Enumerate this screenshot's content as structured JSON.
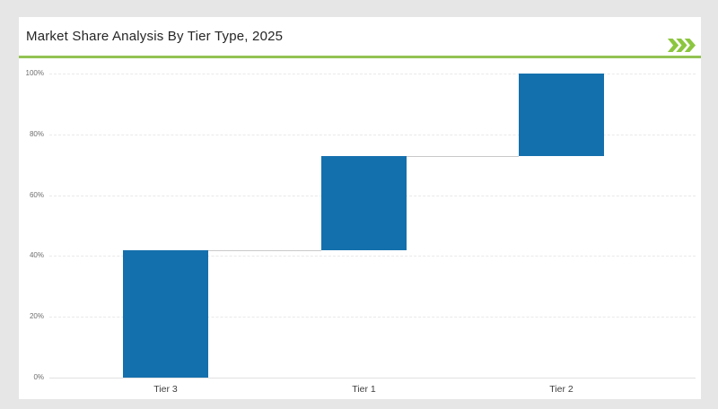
{
  "window": {
    "background_color": "#E6E6E6",
    "card_background_color": "#FFFFFF"
  },
  "header": {
    "title": "Market Share Analysis By Tier Type, 2025",
    "accent_green": "#92C353",
    "chevrons_icon": "triple-chevron-right-icon",
    "chevrons_color": "#8CC63F"
  },
  "chart_data": {
    "type": "bar",
    "subtype": "waterfall",
    "title": "Market Share Analysis By Tier Type, 2025",
    "categories": [
      "Tier 3",
      "Tier 1",
      "Tier 2"
    ],
    "values": [
      42,
      31,
      27
    ],
    "segments": [
      {
        "label": "Tier 3",
        "start": 0,
        "end": 42
      },
      {
        "label": "Tier 1",
        "start": 42,
        "end": 73
      },
      {
        "label": "Tier 2",
        "start": 73,
        "end": 100
      }
    ],
    "xlabel": "",
    "ylabel": "",
    "ylim": [
      0,
      100
    ],
    "ytick_values": [
      0,
      20,
      40,
      60,
      80,
      100
    ],
    "ytick_labels": [
      "0%",
      "20%",
      "40%",
      "60%",
      "80%",
      "100%"
    ],
    "grid": "horizontal-dashed",
    "legend": "none",
    "bar_color": "#1470AD",
    "connector_color": "#C9C9C9",
    "gridline_color": "#E9E9E9",
    "ytick_color": "#6E6E6E",
    "xtick_color": "#3F3F3F"
  }
}
